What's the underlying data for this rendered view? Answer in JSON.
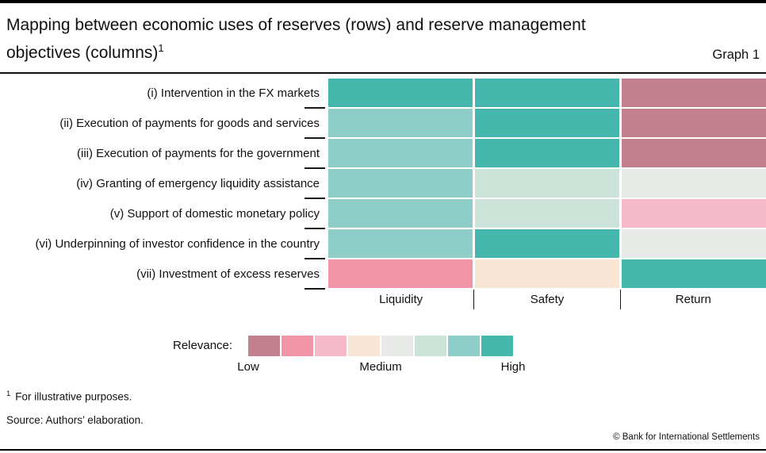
{
  "header": {
    "title_line1": "Mapping between economic uses of reserves (rows) and reserve management",
    "title_line2": "objectives (columns)",
    "title_superscript": "1",
    "graph_label": "Graph 1"
  },
  "chart_data": {
    "type": "heatmap",
    "title": "Mapping between economic uses of reserves (rows) and reserve management objectives (columns)",
    "rows": [
      "(i) Intervention in the FX markets",
      "(ii) Execution of payments for goods and services",
      "(iii) Execution of payments for the government",
      "(iv) Granting of emergency liquidity assistance",
      "(v) Support of domestic monetary policy",
      "(vi) Underpinning of investor confidence in the country",
      "(vii) Investment of excess reserves"
    ],
    "columns": [
      "Liquidity",
      "Safety",
      "Return"
    ],
    "values": [
      [
        8,
        8,
        1
      ],
      [
        7,
        8,
        1
      ],
      [
        7,
        8,
        1
      ],
      [
        7,
        6,
        5
      ],
      [
        7,
        6,
        3
      ],
      [
        7,
        8,
        5
      ],
      [
        2,
        4,
        8
      ]
    ],
    "scale": {
      "label": "Relevance:",
      "colors": [
        "#c2808f",
        "#f295a6",
        "#f6b9c9",
        "#f9e5d3",
        "#e8eae7",
        "#cbe3d9",
        "#8ecdc8",
        "#45b7ac"
      ],
      "tick_labels": [
        "Low",
        "Medium",
        "High"
      ],
      "value_range": [
        1,
        8
      ]
    }
  },
  "footnote": {
    "marker": "1",
    "text": "For illustrative purposes."
  },
  "source": "Source: Authors’ elaboration.",
  "copyright": "© Bank for International Settlements"
}
